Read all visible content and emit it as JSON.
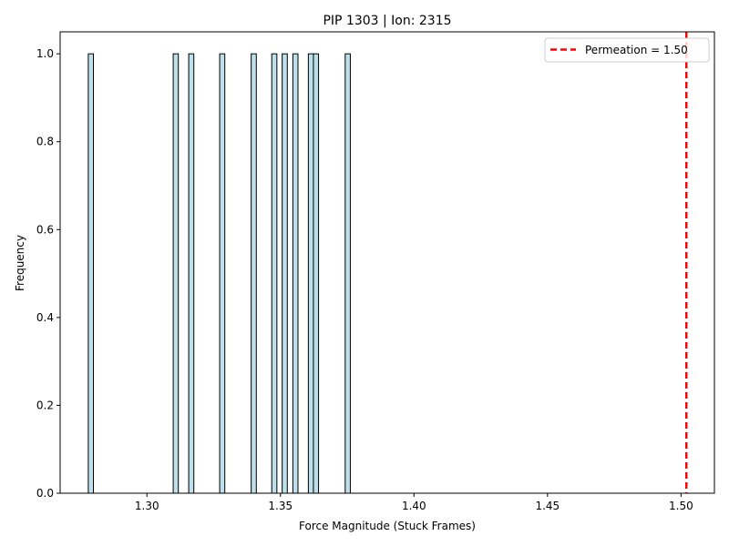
{
  "chart_data": {
    "type": "bar",
    "title": "PIP 1303 | Ion: 2315",
    "xlabel": "Force Magnitude (Stuck Frames)",
    "ylabel": "Frequency",
    "xlim": [
      1.2675,
      1.5125
    ],
    "ylim": [
      0,
      1.05
    ],
    "xticks": [
      1.3,
      1.35,
      1.4,
      1.45,
      1.5
    ],
    "xtick_labels": [
      "1.30",
      "1.35",
      "1.40",
      "1.45",
      "1.50"
    ],
    "yticks": [
      0.0,
      0.2,
      0.4,
      0.6,
      0.8,
      1.0
    ],
    "ytick_labels": [
      "0.0",
      "0.2",
      "0.4",
      "0.6",
      "0.8",
      "1.0"
    ],
    "bin_width": 0.00192,
    "bins": [
      {
        "x": 1.279,
        "count": 1
      },
      {
        "x": 1.3108,
        "count": 1
      },
      {
        "x": 1.3166,
        "count": 1
      },
      {
        "x": 1.3282,
        "count": 1
      },
      {
        "x": 1.34,
        "count": 1
      },
      {
        "x": 1.3477,
        "count": 1
      },
      {
        "x": 1.3516,
        "count": 1
      },
      {
        "x": 1.3556,
        "count": 1
      },
      {
        "x": 1.3614,
        "count": 1
      },
      {
        "x": 1.3633,
        "count": 1
      },
      {
        "x": 1.3752,
        "count": 1
      }
    ],
    "bar_color": "#add8e6",
    "bar_edge_color": "#000000",
    "reference_line": {
      "x": 1.502,
      "color": "#ff0000",
      "style": "dashed",
      "label": "Permeation = 1.50"
    },
    "legend": {
      "position": "top-right",
      "entries": [
        "Permeation = 1.50"
      ]
    },
    "grid": false
  }
}
